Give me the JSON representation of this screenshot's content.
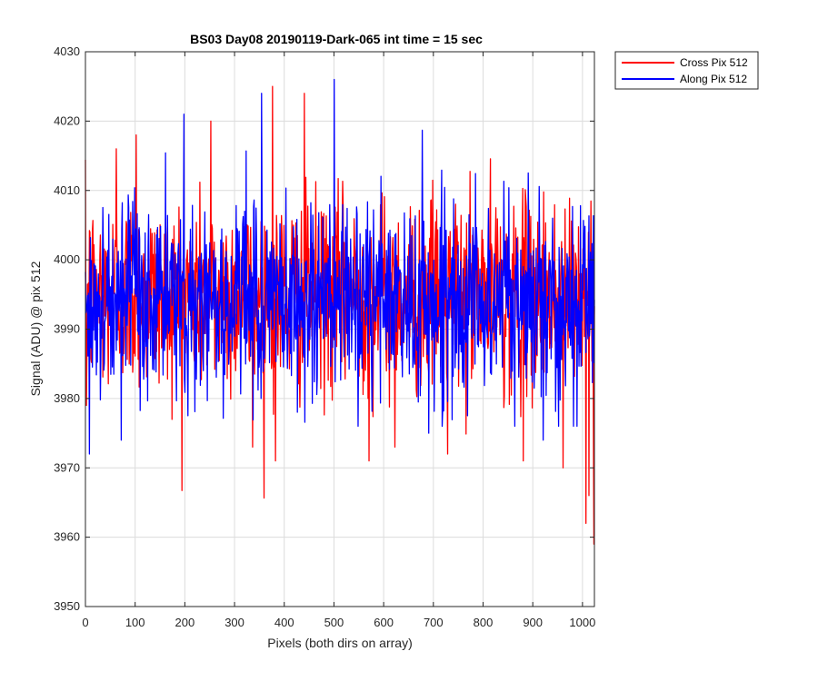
{
  "chart_data": {
    "type": "line",
    "title": "BS03 Day08 20190119-Dark-065 int time = 15 sec",
    "xlabel": "Pixels (both dirs on array)",
    "ylabel": "Signal (ADU) @ pix 512",
    "xlim": [
      0,
      1024
    ],
    "ylim": [
      3950,
      4030
    ],
    "xticks": [
      0,
      100,
      200,
      300,
      400,
      500,
      600,
      700,
      800,
      900,
      1000
    ],
    "yticks": [
      3950,
      3960,
      3970,
      3980,
      3990,
      4000,
      4010,
      4020,
      4030
    ],
    "grid": true,
    "legend_position": "outside-top-right",
    "series": [
      {
        "name": "Cross Pix 512",
        "color": "#ff0000",
        "noise": {
          "n": 1024,
          "mean": 3995,
          "min": 3959,
          "max": 4025
        },
        "key_points": [
          {
            "x": 2,
            "y": 3979
          },
          {
            "x": 62,
            "y": 4016
          },
          {
            "x": 102,
            "y": 4018
          },
          {
            "x": 252,
            "y": 4020
          },
          {
            "x": 336,
            "y": 3973
          },
          {
            "x": 376,
            "y": 4025
          },
          {
            "x": 382,
            "y": 3971
          },
          {
            "x": 440,
            "y": 4024
          },
          {
            "x": 570,
            "y": 3971
          },
          {
            "x": 622,
            "y": 3973
          },
          {
            "x": 728,
            "y": 3972
          },
          {
            "x": 880,
            "y": 3971
          },
          {
            "x": 960,
            "y": 3970
          },
          {
            "x": 1006,
            "y": 3962
          },
          {
            "x": 1012,
            "y": 3966
          },
          {
            "x": 1022,
            "y": 3959
          }
        ]
      },
      {
        "name": "Along Pix 512",
        "color": "#0000ff",
        "noise": {
          "n": 1024,
          "mean": 3994,
          "min": 3972,
          "max": 4026
        },
        "key_points": [
          {
            "x": 8,
            "y": 3972
          },
          {
            "x": 72,
            "y": 3974
          },
          {
            "x": 198,
            "y": 4021
          },
          {
            "x": 320,
            "y": 4007
          },
          {
            "x": 354,
            "y": 4024
          },
          {
            "x": 500,
            "y": 4026
          },
          {
            "x": 690,
            "y": 3975
          },
          {
            "x": 920,
            "y": 3974
          }
        ]
      }
    ]
  }
}
